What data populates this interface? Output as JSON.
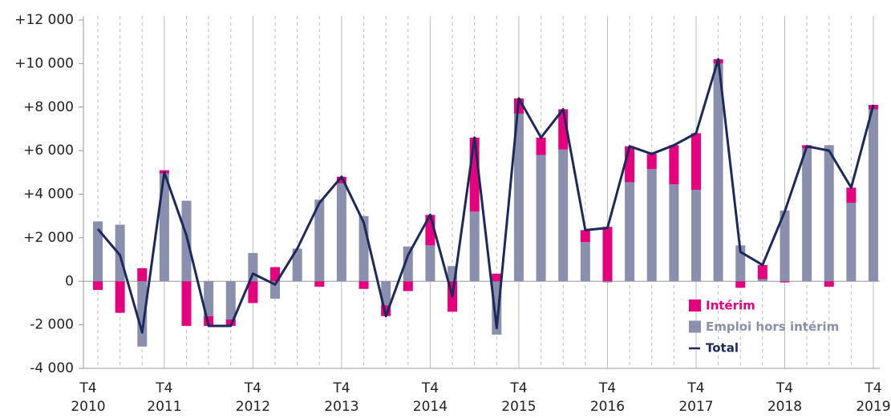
{
  "chart_data": {
    "type": "bar",
    "origin_label": [
      "T4",
      "2010"
    ],
    "categories": [
      null,
      null,
      null,
      [
        "T4",
        "2011"
      ],
      null,
      null,
      null,
      [
        "T4",
        "2012"
      ],
      null,
      null,
      null,
      [
        "T4",
        "2013"
      ],
      null,
      null,
      null,
      [
        "T4",
        "2014"
      ],
      null,
      null,
      null,
      [
        "T4",
        "2015"
      ],
      null,
      null,
      null,
      [
        "T4",
        "2016"
      ],
      null,
      null,
      null,
      [
        "T4",
        "2017"
      ],
      null,
      null,
      null,
      [
        "T4",
        "2018"
      ],
      null,
      null,
      null,
      [
        "T4",
        "2019"
      ]
    ],
    "series": [
      {
        "name": "Emploi hors intérim",
        "color": "#8a8fae",
        "values": [
          2750,
          2600,
          -3000,
          4950,
          3700,
          -1600,
          -1750,
          1300,
          -800,
          1500,
          3750,
          4500,
          3000,
          -1100,
          1600,
          1650,
          700,
          3200,
          -2450,
          7700,
          5800,
          6050,
          1800,
          -50,
          4550,
          5150,
          4450,
          4200,
          10000,
          1650,
          100,
          3250,
          6100,
          6250,
          3600,
          7900
        ]
      },
      {
        "name": "Intérim",
        "color": "#e5007e",
        "values": [
          -400,
          -1450,
          600,
          150,
          -2050,
          -450,
          -300,
          -1000,
          650,
          0,
          -250,
          300,
          -350,
          -500,
          -450,
          1400,
          -1400,
          3400,
          350,
          700,
          800,
          1850,
          550,
          2500,
          1650,
          700,
          1800,
          2600,
          200,
          -300,
          650,
          -50,
          150,
          -250,
          700,
          200
        ]
      },
      {
        "name": "Total",
        "type": "line",
        "color": "#1b2a5a",
        "values": [
          2400,
          1200,
          -2350,
          5000,
          2100,
          -2050,
          -2050,
          350,
          -150,
          1500,
          3600,
          4800,
          2700,
          -1600,
          1200,
          3050,
          -700,
          6600,
          -2150,
          8400,
          6600,
          7900,
          2350,
          2450,
          6200,
          5850,
          6250,
          6800,
          10200,
          1350,
          750,
          3200,
          6200,
          6000,
          4300,
          8100
        ]
      }
    ],
    "ylim": [
      -4000,
      12000
    ],
    "yticks": [
      {
        "value": -4000,
        "label": "-4 000"
      },
      {
        "value": -2000,
        "label": "-2 000"
      },
      0,
      {
        "value": 2000,
        "label": "+2 000"
      },
      {
        "value": 4000,
        "label": "+4 000"
      },
      {
        "value": 6000,
        "label": "+6 000"
      },
      {
        "value": 8000,
        "label": "+8 000"
      },
      {
        "value": 10000,
        "label": "+10 000"
      },
      {
        "value": 12000,
        "label": "+12 000"
      }
    ],
    "legend": "lower right"
  }
}
